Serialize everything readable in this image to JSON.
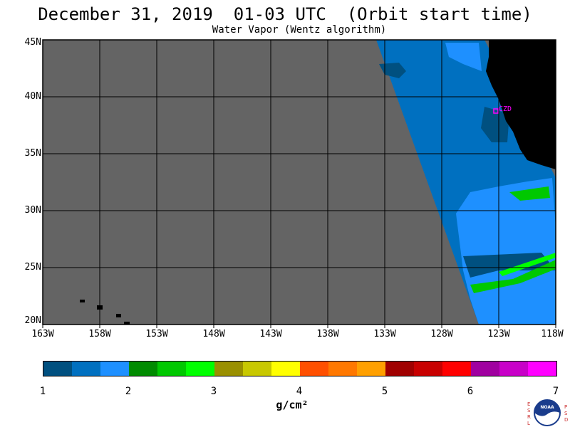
{
  "title": "December 31, 2019  01-03 UTC  (Orbit start time)",
  "subtitle": "Water Vapor (Wentz algorithm)",
  "map": {
    "lat_labels": [
      "45N",
      "40N",
      "35N",
      "30N",
      "25N",
      "20N"
    ],
    "lon_labels": [
      "163W",
      "158W",
      "153W",
      "148W",
      "143W",
      "138W",
      "133W",
      "128W",
      "123W",
      "118W"
    ],
    "lat_range": [
      20,
      45
    ],
    "lon_range": [
      -163,
      -118
    ],
    "station_label": "CZD",
    "no_data_color": "#646464",
    "land_color": "#000000"
  },
  "colorbar": {
    "unit": "g/cm²",
    "tick_labels": [
      "1",
      "2",
      "3",
      "4",
      "5",
      "6",
      "7"
    ],
    "range": [
      1,
      7
    ],
    "colors": [
      "#005080",
      "#0070c0",
      "#1e90ff",
      "#008b00",
      "#00c800",
      "#00ff00",
      "#9a9000",
      "#c8c800",
      "#ffff00",
      "#ff5000",
      "#ff7800",
      "#ffa000",
      "#a00000",
      "#c80000",
      "#ff0000",
      "#a000a0",
      "#c800c8",
      "#ff00ff"
    ]
  },
  "logo": {
    "left_letters": [
      "E",
      "S",
      "R",
      "L"
    ],
    "right_letters": [
      "P",
      "S",
      "D"
    ],
    "badge_text": "NOAA"
  }
}
